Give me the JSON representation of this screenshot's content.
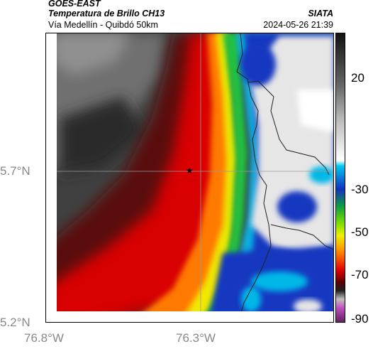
{
  "header": {
    "product": "GOES-EAST",
    "title": "Temperatura de Brillo CH13",
    "route": "Vía Medellín - Quibdó 50km",
    "organization": "SIATA",
    "timestamp": "2024-05-26 21:39"
  },
  "map": {
    "y_ticks": [
      "5.7°N",
      "5.2°N"
    ],
    "x_ticks": [
      "76.8°W",
      "76.3°W"
    ],
    "marker_icon": "star-icon",
    "colors": {
      "cold_cloud": "#e8e8e8",
      "cyan": "#00b8e8",
      "blue": "#1030c0",
      "green": "#20c040",
      "yellow": "#f0f000",
      "orange": "#ff8000",
      "red": "#e00000",
      "dark_red": "#600000",
      "warm_dark": "#303030",
      "warm_gray": "#808080"
    }
  },
  "colorbar": {
    "tick_labels": [
      "20",
      "-30",
      "-50",
      "-70",
      "-90"
    ]
  }
}
